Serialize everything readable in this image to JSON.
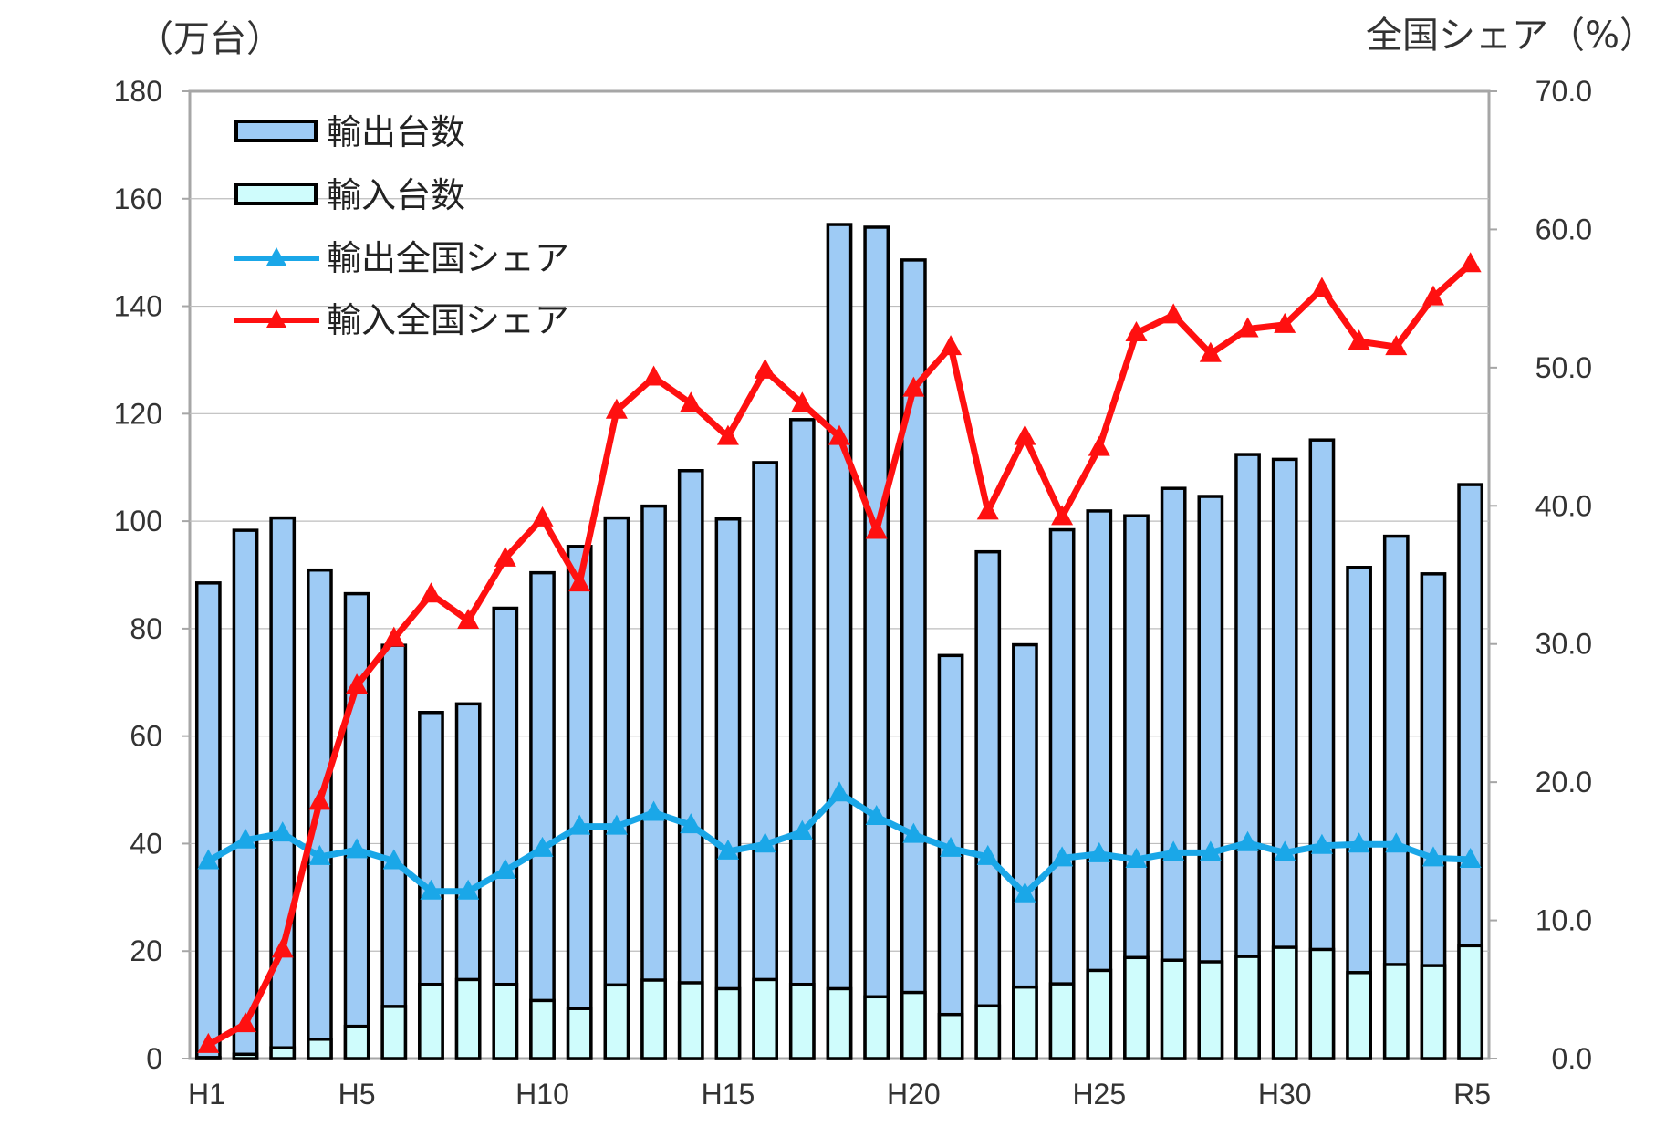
{
  "colors": {
    "export_bar": "#9ecbf5",
    "import_bar": "#cffcfc",
    "export_line": "#1aa7e8",
    "import_line": "#ff1010",
    "bar_stroke": "#000000",
    "axis": "#a6a6a6"
  },
  "chart_data": {
    "type": "bar",
    "left_unit": "（万台）",
    "right_unit": "全国シェア（%）",
    "categories": [
      "H1",
      "H2",
      "H3",
      "H4",
      "H5",
      "H6",
      "H7",
      "H8",
      "H9",
      "H10",
      "H11",
      "H12",
      "H13",
      "H14",
      "H15",
      "H16",
      "H17",
      "H18",
      "H19",
      "H20",
      "H21",
      "H22",
      "H23",
      "H24",
      "H25",
      "H26",
      "H27",
      "H28",
      "H29",
      "H30",
      "H31",
      "R2",
      "R3",
      "R4",
      "R5"
    ],
    "x_tick_labels": [
      "H1",
      "",
      "",
      "",
      "H5",
      "",
      "",
      "",
      "",
      "H10",
      "",
      "",
      "",
      "",
      "H15",
      "",
      "",
      "",
      "",
      "H20",
      "",
      "",
      "",
      "",
      "H25",
      "",
      "",
      "",
      "",
      "H30",
      "",
      "",
      "",
      "",
      "R5"
    ],
    "y_left": {
      "min": 0,
      "max": 180,
      "step": 20,
      "tick_labels": [
        "0",
        "20",
        "40",
        "60",
        "80",
        "100",
        "120",
        "140",
        "160",
        "180"
      ]
    },
    "y_right": {
      "min": 0,
      "max": 70,
      "step": 10,
      "tick_labels": [
        "0.0",
        "10.0",
        "20.0",
        "30.0",
        "40.0",
        "50.0",
        "60.0",
        "70.0"
      ]
    },
    "legend_position": "top-left",
    "series": [
      {
        "name": "輸出台数",
        "kind": "bar",
        "axis": "left",
        "values": [
          88.5,
          98.3,
          100.6,
          90.9,
          86.5,
          76.9,
          64.4,
          66.0,
          83.8,
          90.4,
          95.3,
          100.6,
          102.8,
          109.4,
          100.4,
          110.9,
          118.9,
          155.2,
          154.7,
          148.6,
          75.0,
          94.3,
          77.0,
          98.4,
          101.9,
          101.0,
          106.1,
          104.6,
          112.4,
          111.5,
          115.1,
          91.4,
          97.2,
          90.2,
          106.8
        ]
      },
      {
        "name": "輸入台数",
        "kind": "bar",
        "axis": "left",
        "values": [
          0.2,
          0.8,
          2.0,
          3.6,
          6.0,
          9.7,
          13.8,
          14.7,
          13.8,
          10.8,
          9.3,
          13.7,
          14.6,
          14.1,
          13.0,
          14.7,
          13.8,
          13.0,
          11.5,
          12.3,
          8.2,
          9.8,
          13.3,
          13.9,
          16.4,
          18.8,
          18.3,
          18.0,
          19.0,
          20.7,
          20.3,
          16.0,
          17.5,
          17.3,
          21.0
        ]
      },
      {
        "name": "輸出全国シェア",
        "kind": "line",
        "axis": "right",
        "values": [
          14.3,
          15.8,
          16.3,
          14.6,
          15.1,
          14.3,
          12.1,
          12.1,
          13.6,
          15.2,
          16.8,
          16.8,
          17.8,
          16.9,
          15.0,
          15.5,
          16.4,
          19.2,
          17.5,
          16.2,
          15.2,
          14.6,
          11.9,
          14.5,
          14.8,
          14.4,
          14.9,
          14.9,
          15.6,
          14.9,
          15.4,
          15.5,
          15.5,
          14.5,
          14.4
        ]
      },
      {
        "name": "輸入全国シェア",
        "kind": "line",
        "axis": "right",
        "values": [
          1.0,
          2.5,
          7.9,
          18.6,
          27.0,
          30.4,
          33.6,
          31.7,
          36.2,
          39.1,
          34.4,
          46.9,
          49.3,
          47.4,
          45.0,
          49.8,
          47.4,
          45.0,
          38.2,
          48.5,
          51.5,
          39.6,
          45.0,
          39.2,
          44.2,
          52.5,
          53.8,
          51.0,
          52.8,
          53.1,
          55.7,
          51.9,
          51.5,
          55.1,
          57.5
        ]
      }
    ]
  }
}
